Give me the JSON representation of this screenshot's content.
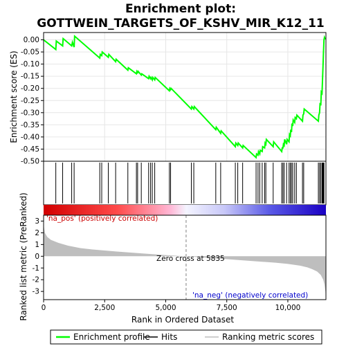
{
  "title_line1": "Enrichment plot:",
  "title_line2": "GOTTWEIN_TARGETS_OF_KSHV_MIR_K12_11",
  "chart_data": {
    "type": "line",
    "colors": {
      "profile": "#00ff00",
      "hits": "#000000",
      "metric": "#bebebe",
      "zero_line": "#808080"
    },
    "es_panel": {
      "ylabel": "Enrichment score (ES)",
      "ylim": [
        -0.5,
        0.03
      ],
      "yticks": [
        0.0,
        -0.05,
        -0.1,
        -0.15,
        -0.2,
        -0.25,
        -0.3,
        -0.35,
        -0.4,
        -0.45,
        -0.5
      ],
      "ytick_labels": [
        "0.00",
        "-0.05",
        "-0.10",
        "-0.15",
        "-0.20",
        "-0.25",
        "-0.30",
        "-0.35",
        "-0.40",
        "-0.45",
        "-0.50"
      ],
      "grid": true,
      "profile": {
        "x": [
          0,
          500,
          520,
          780,
          800,
          1150,
          1180,
          1250,
          1270,
          2300,
          2320,
          2380,
          2400,
          2650,
          2670,
          2950,
          2970,
          3450,
          3470,
          3800,
          3820,
          3850,
          3870,
          4000,
          4020,
          4300,
          4320,
          4380,
          4400,
          4450,
          4470,
          4550,
          4570,
          5150,
          5170,
          5200,
          5220,
          6050,
          6070,
          6150,
          6170,
          7050,
          7070,
          7250,
          7270,
          7850,
          7870,
          7950,
          7970,
          8150,
          8170,
          8700,
          8720,
          8780,
          8800,
          8850,
          8870,
          8950,
          8970,
          9050,
          9070,
          9100,
          9120,
          9400,
          9420,
          9750,
          9770,
          9800,
          9820,
          9850,
          9870,
          9950,
          9970,
          10050,
          10070,
          10100,
          10120,
          10150,
          10170,
          10200,
          10220,
          10280,
          10300,
          10350,
          10370,
          10600,
          10620,
          10650,
          10670,
          11250,
          11270,
          11300,
          11320,
          11350,
          11370,
          11400,
          11420,
          11440,
          11460,
          11480,
          11500,
          11520,
          11540,
          11560
        ],
        "y": [
          0.0,
          -0.04,
          -0.005,
          -0.025,
          0.005,
          -0.025,
          -0.01,
          -0.03,
          0.015,
          -0.075,
          -0.06,
          -0.065,
          -0.05,
          -0.072,
          -0.06,
          -0.09,
          -0.08,
          -0.125,
          -0.115,
          -0.14,
          -0.13,
          -0.135,
          -0.13,
          -0.145,
          -0.14,
          -0.16,
          -0.15,
          -0.16,
          -0.155,
          -0.165,
          -0.155,
          -0.165,
          -0.155,
          -0.21,
          -0.2,
          -0.205,
          -0.2,
          -0.285,
          -0.275,
          -0.285,
          -0.275,
          -0.37,
          -0.36,
          -0.385,
          -0.375,
          -0.44,
          -0.425,
          -0.435,
          -0.425,
          -0.445,
          -0.435,
          -0.485,
          -0.47,
          -0.475,
          -0.46,
          -0.47,
          -0.455,
          -0.46,
          -0.44,
          -0.445,
          -0.425,
          -0.43,
          -0.41,
          -0.44,
          -0.42,
          -0.46,
          -0.445,
          -0.445,
          -0.43,
          -0.435,
          -0.41,
          -0.43,
          -0.41,
          -0.42,
          -0.39,
          -0.395,
          -0.37,
          -0.38,
          -0.345,
          -0.355,
          -0.33,
          -0.34,
          -0.32,
          -0.325,
          -0.31,
          -0.335,
          -0.31,
          -0.305,
          -0.285,
          -0.335,
          -0.31,
          -0.3,
          -0.26,
          -0.27,
          -0.215,
          -0.22,
          -0.165,
          -0.11,
          -0.05,
          0.0,
          0.01,
          0.005,
          0.005,
          0.005
        ]
      }
    },
    "hits": [
      500,
      780,
      1150,
      1250,
      2300,
      2380,
      2650,
      2950,
      3450,
      3800,
      3850,
      4000,
      4300,
      4380,
      4450,
      4550,
      5150,
      5200,
      6050,
      6150,
      7050,
      7250,
      7850,
      7950,
      8150,
      8700,
      8780,
      8850,
      8950,
      9050,
      9100,
      9400,
      9750,
      9800,
      9850,
      9950,
      10050,
      10100,
      10150,
      10200,
      10280,
      10350,
      10600,
      10650,
      11250,
      11300,
      11350,
      11400,
      11420,
      11440,
      11460,
      11480
    ],
    "metric_panel": {
      "ylabel": "Ranked list metric (PreRanked)",
      "ylim": [
        -3.7,
        3.5
      ],
      "yticks": [
        3,
        2,
        1,
        0,
        -1,
        -2,
        -3
      ],
      "ytick_labels": [
        "3",
        "2",
        "1",
        "0",
        "-1",
        "-2",
        "-3"
      ],
      "grid": false,
      "curve": {
        "x": [
          0,
          50,
          150,
          300,
          600,
          1000,
          1500,
          2000,
          3000,
          4000,
          5000,
          5835,
          6500,
          7500,
          8500,
          9500,
          10000,
          10500,
          10800,
          11000,
          11200,
          11350,
          11450,
          11500,
          11540,
          11560
        ],
        "y": [
          2.7,
          2.0,
          1.65,
          1.4,
          1.15,
          0.9,
          0.7,
          0.58,
          0.4,
          0.25,
          0.1,
          0.0,
          -0.1,
          -0.25,
          -0.4,
          -0.55,
          -0.65,
          -0.8,
          -0.95,
          -1.1,
          -1.3,
          -1.6,
          -2.0,
          -2.4,
          -3.0,
          -3.6
        ]
      },
      "pos_label": "'na_pos' (positively correlated)",
      "neg_label": "'na_neg' (negatively correlated)",
      "zero_cross_label": "Zero cross at 5835",
      "zero_cross": 5835
    },
    "xlabel": "Rank in Ordered Dataset",
    "xlim": [
      0,
      11560
    ],
    "xticks": [
      0,
      2500,
      5000,
      7500,
      10000
    ],
    "xtick_labels": [
      "0",
      "2,500",
      "5,000",
      "7,500",
      "10,000"
    ],
    "legend": {
      "placement": "bottom",
      "entries": [
        {
          "label": "Enrichment profile",
          "color": "#00ff00",
          "kind": "line"
        },
        {
          "label": "Hits",
          "color": "#000000",
          "kind": "line"
        },
        {
          "label": "Ranking metric scores",
          "color": "#bebebe",
          "kind": "line"
        }
      ]
    }
  }
}
